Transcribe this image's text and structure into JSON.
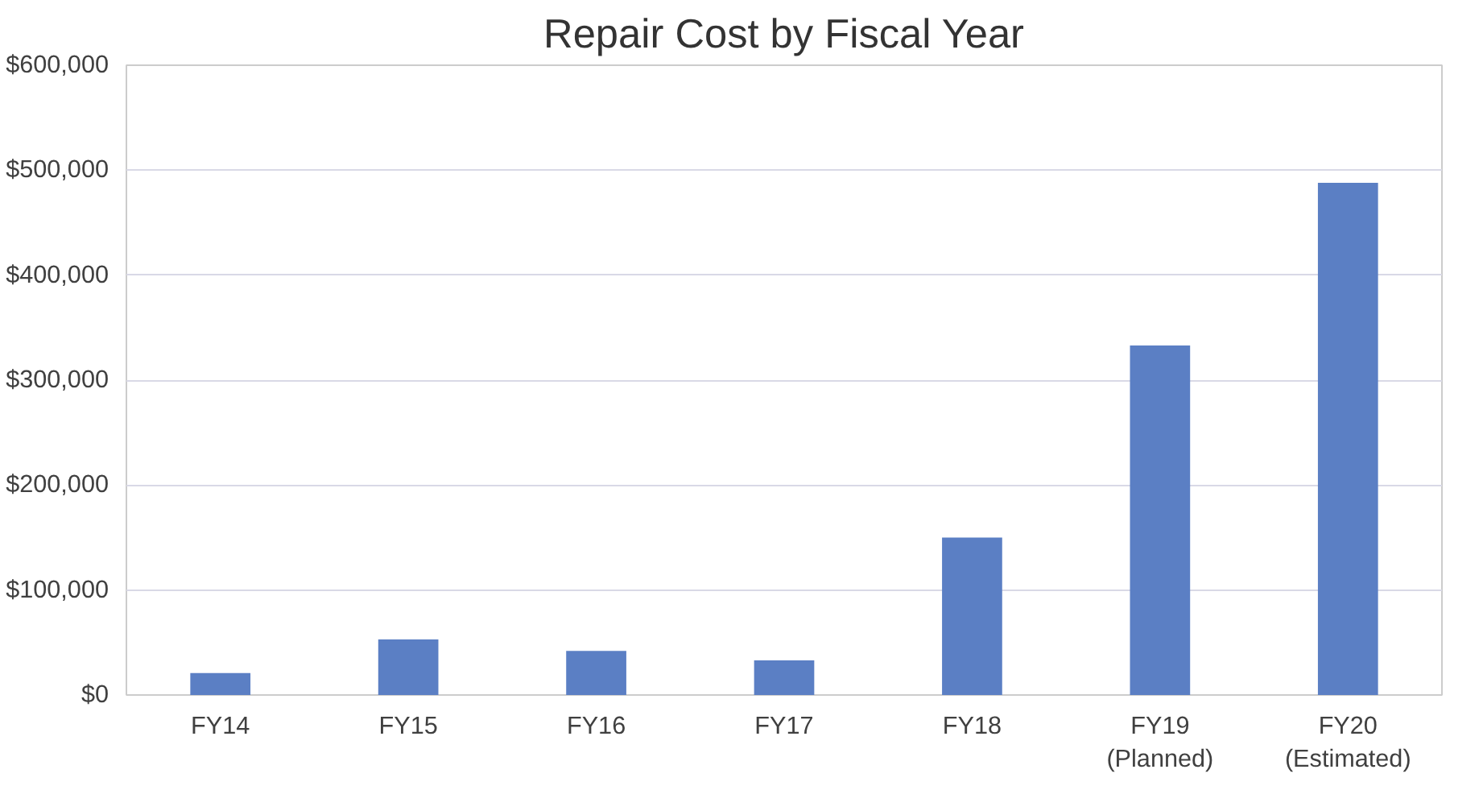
{
  "chart_data": {
    "type": "bar",
    "title": "Repair Cost by Fiscal Year",
    "categories": [
      "FY14",
      "FY15",
      "FY16",
      "FY17",
      "FY18",
      "FY19\n(Planned)",
      "FY20\n(Estimated)"
    ],
    "values": [
      21000,
      53000,
      42000,
      33000,
      150000,
      333000,
      488000
    ],
    "color": "#5b7fc4",
    "ylim": [
      0,
      600000
    ],
    "yticks": [
      {
        "value": 0,
        "label": "$0"
      },
      {
        "value": 100000,
        "label": "$100,000"
      },
      {
        "value": 200000,
        "label": "$200,000"
      },
      {
        "value": 300000,
        "label": "$300,000"
      },
      {
        "value": 400000,
        "label": "$400,000"
      },
      {
        "value": 500000,
        "label": "$500,000"
      },
      {
        "value": 600000,
        "label": "$600,000"
      }
    ],
    "grid": "y"
  }
}
